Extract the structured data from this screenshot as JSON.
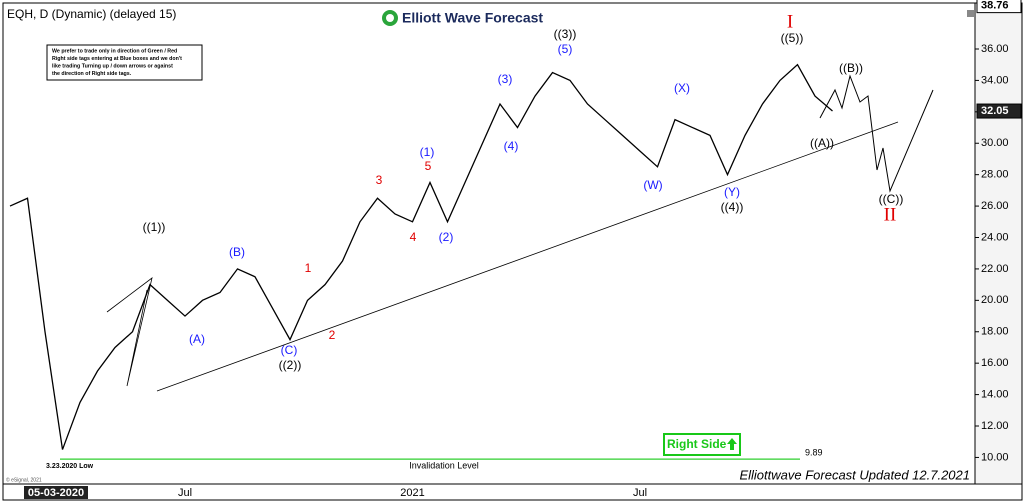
{
  "chart_data": {
    "type": "line",
    "title": "EQH, D (Dynamic) (delayed 15)",
    "brand": "Elliott Wave Forecast",
    "note": [
      "We prefer to trade only in direction of Green / Red",
      "Right side tags entering at Blue boxes and we don't",
      "like trading Turning up / down arrows or against",
      "the direction of Right side tags."
    ],
    "categories": [
      null,
      null,
      null,
      null,
      null,
      null,
      null,
      null,
      null,
      null,
      "Jul",
      null,
      null,
      null,
      null,
      null,
      null,
      null,
      null,
      null,
      null,
      null,
      null,
      "2021",
      null,
      null,
      null,
      null,
      null,
      null,
      null,
      null,
      null,
      null,
      null,
      null,
      "Jul",
      null,
      null,
      null,
      null,
      null,
      null,
      null,
      null,
      null,
      null,
      null
    ],
    "series": [
      {
        "name": "EQH",
        "color": "#000000",
        "values": [
          26,
          26.5,
          18,
          10.5,
          13.5,
          15.5,
          17,
          18,
          21,
          20,
          19,
          20,
          20.5,
          22,
          21.5,
          19.5,
          17.5,
          20,
          21,
          22.5,
          25,
          26.5,
          25.5,
          25,
          27.5,
          25,
          27.5,
          30,
          32.5,
          31,
          33,
          34.5,
          34,
          32.5,
          31.5,
          30.5,
          29.5,
          28.5,
          31.5,
          31,
          30.5,
          28,
          30.5,
          32.5,
          34,
          35,
          33,
          32.05
        ]
      }
    ],
    "ylim": [
      9.2,
      38.8
    ],
    "yticks": [
      {
        "value": 10,
        "label": "10.00"
      },
      {
        "value": 12,
        "label": "12.00"
      },
      {
        "value": 14,
        "label": "14.00"
      },
      {
        "value": 16,
        "label": "16.00"
      },
      {
        "value": 18,
        "label": "18.00"
      },
      {
        "value": 20,
        "label": "20.00"
      },
      {
        "value": 22,
        "label": "22.00"
      },
      {
        "value": 24,
        "label": "24.00"
      },
      {
        "value": 26,
        "label": "26.00"
      },
      {
        "value": 28,
        "label": "28.00"
      },
      {
        "value": 30,
        "label": "30.00"
      },
      {
        "value": 32,
        "label": "32.00"
      },
      {
        "value": 34,
        "label": "34.00"
      },
      {
        "value": 36,
        "label": "36.00"
      }
    ],
    "price_markers": [
      {
        "value": 38.76,
        "label": "38.76"
      },
      {
        "value": 32.05,
        "label": "32.05"
      }
    ],
    "invalidation": {
      "value": 9.89,
      "label": "9.89",
      "text": "Invalidation Level"
    },
    "low_label": "3.23.2020 Low",
    "cursor_date": "05-03-2020",
    "right_side": "Right Side",
    "footer": "Elliottwave Forecast Updated 12.7.2021",
    "copyright": "© eSignal, 2021",
    "annotations": [
      {
        "text": "((1))",
        "color": "#000000"
      },
      {
        "text": "(A)",
        "color": "#1a1aff"
      },
      {
        "text": "(B)",
        "color": "#1a1aff"
      },
      {
        "text": "(C)",
        "color": "#1a1aff"
      },
      {
        "text": "((2))",
        "color": "#000000"
      },
      {
        "text": "1",
        "color": "#e00000"
      },
      {
        "text": "2",
        "color": "#e00000"
      },
      {
        "text": "3",
        "color": "#e00000"
      },
      {
        "text": "4",
        "color": "#e00000"
      },
      {
        "text": "5",
        "color": "#e00000"
      },
      {
        "text": "(1)",
        "color": "#1a1aff"
      },
      {
        "text": "(2)",
        "color": "#1a1aff"
      },
      {
        "text": "(3)",
        "color": "#1a1aff"
      },
      {
        "text": "(4)",
        "color": "#1a1aff"
      },
      {
        "text": "(5)",
        "color": "#1a1aff"
      },
      {
        "text": "((3))",
        "color": "#000000"
      },
      {
        "text": "(W)",
        "color": "#1a1aff"
      },
      {
        "text": "(X)",
        "color": "#1a1aff"
      },
      {
        "text": "(Y)",
        "color": "#1a1aff"
      },
      {
        "text": "((4))",
        "color": "#000000"
      },
      {
        "text": "I",
        "color": "#e00000"
      },
      {
        "text": "((5))",
        "color": "#000000"
      },
      {
        "text": "((A))",
        "color": "#000000"
      },
      {
        "text": "((B))",
        "color": "#000000"
      },
      {
        "text": "((C))",
        "color": "#000000"
      },
      {
        "text": "II",
        "color": "#e00000"
      }
    ]
  }
}
